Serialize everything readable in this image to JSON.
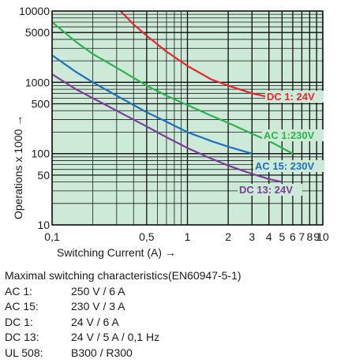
{
  "chart_data": {
    "type": "line",
    "title": "",
    "xlabel": "Switching Current (A) →",
    "ylabel": "Operations x 1000 →",
    "xscale": "log",
    "yscale": "log",
    "xlim": [
      0.1,
      10
    ],
    "ylim": [
      10,
      10000
    ],
    "grid": true,
    "background_color": "#cde9d8",
    "x_ticks": [
      {
        "value": 0.1,
        "label": "0,1"
      },
      {
        "value": 0.5,
        "label": "0,5"
      },
      {
        "value": 1,
        "label": "1"
      },
      {
        "value": 2,
        "label": "2"
      },
      {
        "value": 3,
        "label": "3"
      },
      {
        "value": 4,
        "label": "4"
      },
      {
        "value": 5,
        "label": "5"
      },
      {
        "value": 6,
        "label": "6"
      },
      {
        "value": 7,
        "label": "7"
      },
      {
        "value": 8,
        "label": "8"
      },
      {
        "value": 9,
        "label": "9"
      },
      {
        "value": 10,
        "label": "10"
      }
    ],
    "y_ticks": [
      {
        "value": 10000,
        "label": "10000"
      },
      {
        "value": 5000,
        "label": "5000"
      },
      {
        "value": 1000,
        "label": "1000"
      },
      {
        "value": 500,
        "label": "500"
      },
      {
        "value": 100,
        "label": "100"
      },
      {
        "value": 50,
        "label": "50"
      },
      {
        "value": 10,
        "label": "10"
      }
    ],
    "series": [
      {
        "name": "DC 1: 24V",
        "color": "#e8262b",
        "x": [
          0.32,
          0.4,
          0.5,
          0.7,
          1,
          1.5,
          2,
          3,
          4,
          5,
          6
        ],
        "y": [
          10000,
          6500,
          4500,
          2700,
          1700,
          1100,
          900,
          700,
          620,
          570,
          530
        ]
      },
      {
        "name": "AC 1:230V",
        "color": "#2db34a",
        "x": [
          0.1,
          0.15,
          0.2,
          0.3,
          0.5,
          0.7,
          1,
          1.5,
          2,
          3,
          4,
          5,
          6
        ],
        "y": [
          7000,
          3700,
          2500,
          1600,
          900,
          650,
          480,
          340,
          270,
          190,
          150,
          120,
          100
        ]
      },
      {
        "name": "AC 15: 230V",
        "color": "#1f6fbf",
        "x": [
          0.1,
          0.15,
          0.2,
          0.3,
          0.5,
          0.7,
          1,
          1.5,
          2,
          3
        ],
        "y": [
          2400,
          1400,
          1000,
          650,
          380,
          280,
          200,
          150,
          125,
          100
        ]
      },
      {
        "name": "DC 13: 24V",
        "color": "#7b3f98",
        "x": [
          0.1,
          0.15,
          0.2,
          0.3,
          0.5,
          0.7,
          1,
          1.5,
          2,
          3,
          4,
          5
        ],
        "y": [
          1300,
          800,
          600,
          400,
          240,
          170,
          120,
          85,
          68,
          52,
          44,
          40
        ]
      }
    ]
  },
  "specs": {
    "heading": "Maximal switching characteristics(EN60947-5-1)",
    "rows": [
      {
        "key": "AC 1:",
        "value": "250 V / 6 A"
      },
      {
        "key": "AC 15:",
        "value": "230 V / 3 A"
      },
      {
        "key": "DC 1:",
        "value": "24 V / 6 A"
      },
      {
        "key": "DC 13:",
        "value": "24 V / 5 A / 0,1 Hz"
      },
      {
        "key": "UL 508:",
        "value": "B300 / R300"
      }
    ]
  }
}
